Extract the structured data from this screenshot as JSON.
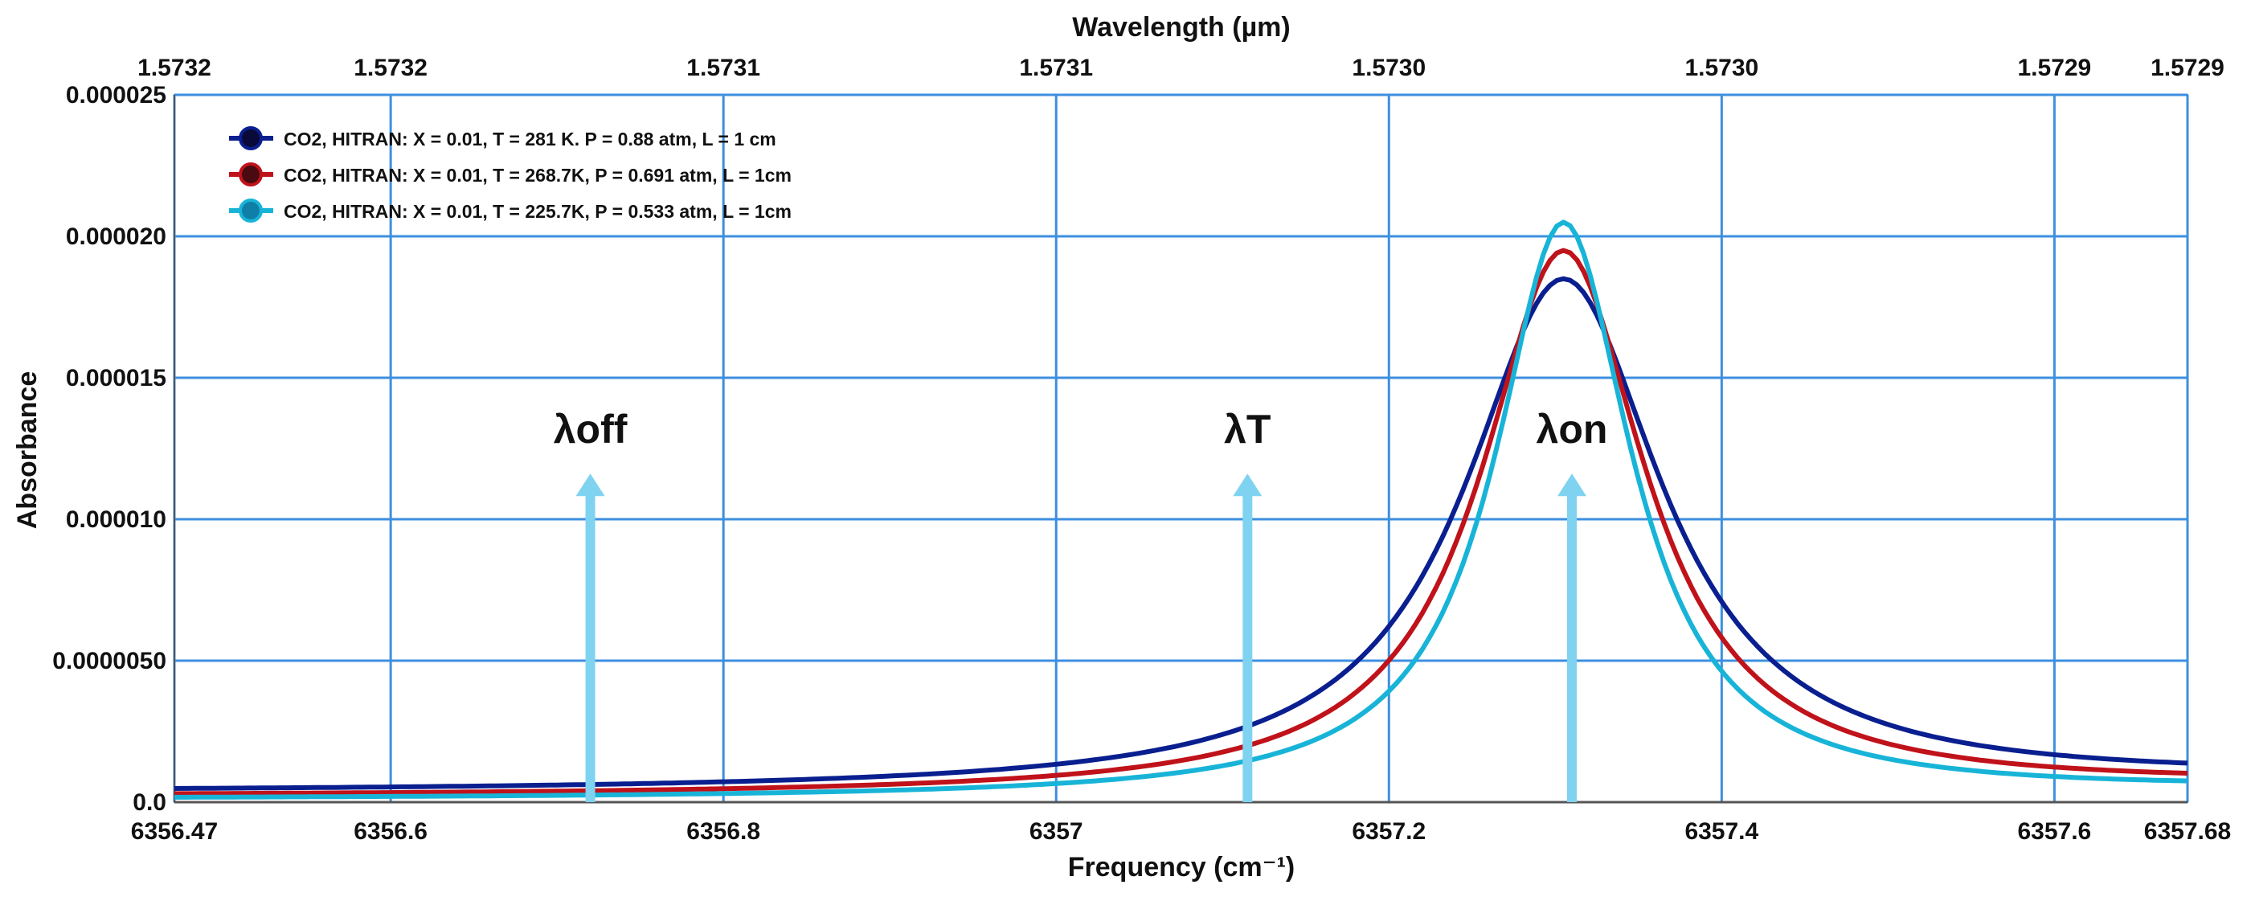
{
  "chart_data": {
    "type": "line",
    "title": "",
    "xlabel": "Frequency (cm⁻¹)",
    "ylabel": "Absorbance",
    "x2label": "Wavelength (µm)",
    "xlim": [
      6356.47,
      6357.68
    ],
    "ylim": [
      0,
      2.5e-05
    ],
    "grid": true,
    "legend_position": "top-left",
    "x_ticks": [
      {
        "value": 6356.47,
        "label": "6356.47"
      },
      {
        "value": 6356.6,
        "label": "6356.6"
      },
      {
        "value": 6356.8,
        "label": "6356.8"
      },
      {
        "value": 6357.0,
        "label": "6357"
      },
      {
        "value": 6357.2,
        "label": "6357.2"
      },
      {
        "value": 6357.4,
        "label": "6357.4"
      },
      {
        "value": 6357.6,
        "label": "6357.6"
      },
      {
        "value": 6357.68,
        "label": "6357.68"
      }
    ],
    "y_ticks": [
      {
        "value": 0,
        "label": "0.0"
      },
      {
        "value": 5e-06,
        "label": "0.0000050"
      },
      {
        "value": 1e-05,
        "label": "0.000010"
      },
      {
        "value": 1.5e-05,
        "label": "0.000015"
      },
      {
        "value": 2e-05,
        "label": "0.000020"
      },
      {
        "value": 2.5e-05,
        "label": "0.000025"
      }
    ],
    "x2_ticks": [
      {
        "value": 6356.47,
        "label": "1.5732"
      },
      {
        "value": 6356.6,
        "label": "1.5732"
      },
      {
        "value": 6356.8,
        "label": "1.5731"
      },
      {
        "value": 6357.0,
        "label": "1.5731"
      },
      {
        "value": 6357.2,
        "label": "1.5730"
      },
      {
        "value": 6357.4,
        "label": "1.5730"
      },
      {
        "value": 6357.6,
        "label": "1.5729"
      },
      {
        "value": 6357.68,
        "label": "1.5729"
      }
    ],
    "series": [
      {
        "name": "CO2, HITRAN: X = 0.01, T = 281 K. P = 0.88 atm, L = 1 cm",
        "color": "#0a1f8f",
        "marker_fill": "#0a0a3a",
        "peak_x": 6357.305,
        "peak_y": 1.85e-05,
        "hwhm": 0.072,
        "baseline": 3.5e-07,
        "tail_end": 7.5e-07
      },
      {
        "name": "CO2, HITRAN: X = 0.01, T = 268.7K, P = 0.691 atm, L =  1cm",
        "color": "#c0121a",
        "marker_fill": "#4a0a10",
        "peak_x": 6357.305,
        "peak_y": 1.95e-05,
        "hwhm": 0.06,
        "baseline": 2e-07,
        "tail_end": 5.5e-07
      },
      {
        "name": "CO2, HITRAN: X = 0.01, T = 225.7K, P = 0.533 atm, L =  1cm",
        "color": "#18b4d8",
        "marker_fill": "#0f7fa8",
        "peak_x": 6357.305,
        "peak_y": 2.05e-05,
        "hwhm": 0.05,
        "baseline": 1e-07,
        "tail_end": 4e-07
      }
    ],
    "annotations": [
      {
        "label": "λoff",
        "x": 6356.72,
        "y_top": 1.15e-05
      },
      {
        "label": "λT",
        "x": 6357.115,
        "y_top": 1.15e-05
      },
      {
        "label": "λon",
        "x": 6357.31,
        "y_top": 1.15e-05
      }
    ],
    "grid_color": "#3d8fe0",
    "arrow_color": "#7fd3f0"
  }
}
